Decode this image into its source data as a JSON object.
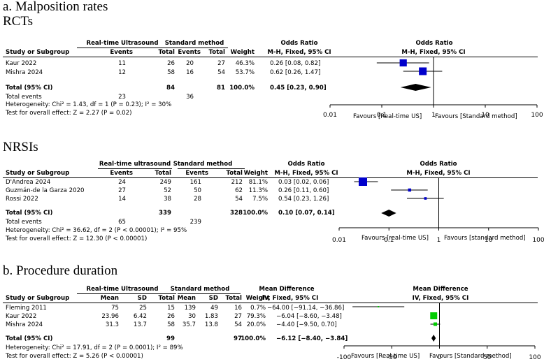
{
  "title_a": "a. Malposition rates",
  "title_b": "b. Procedure duration",
  "rcts": {
    "heading": "RCTs",
    "col_left_group": "Real-time Ultrasound",
    "col_right_group": "Standard method",
    "col_or": "Odds Ratio",
    "col_or_sub": "M-H, Fixed, 95% CI",
    "col_plot_title": "Odds Ratio",
    "col_plot_sub": "M-H, Fixed, 95% CI",
    "col_study": "Study or Subgroup",
    "col_events": "Events",
    "col_total": "Total",
    "col_weight": "Weight",
    "rows": [
      {
        "study": "Kaur 2022",
        "e1": "11",
        "t1": "26",
        "e2": "20",
        "t2": "27",
        "w": "46.3%",
        "ci": "0.26 [0.08, 0.82]"
      },
      {
        "study": "Mishra 2024",
        "e1": "12",
        "t1": "58",
        "e2": "16",
        "t2": "54",
        "w": "53.7%",
        "ci": "0.62 [0.26, 1.47]"
      }
    ],
    "total_label": "Total (95% CI)",
    "total_t1": "84",
    "total_t2": "81",
    "total_w": "100.0%",
    "total_ci": "0.45 [0.23, 0.90]",
    "events_label": "Total events",
    "events_e1": "23",
    "events_e2": "36",
    "het": "Heterogeneity: Chi² = 1.43, df = 1 (P = 0.23); I² = 30%",
    "overall": "Test for overall effect: Z = 2.27 (P = 0.02)",
    "fav_left": "Favours [Real-time US]",
    "fav_right": "Favours [Standard method]"
  },
  "nrsis": {
    "heading": "NRSIs",
    "col_left_group": "Real-time ultrasound",
    "col_right_group": "Standard method",
    "col_or": "Odds Ratio",
    "col_or_sub": "M-H, Fixed, 95% CI",
    "col_plot_title": "Odds Ratio",
    "col_plot_sub": "M-H, Fixed, 95% CI",
    "col_study": "Study or Subgroup",
    "col_events": "Events",
    "col_total": "Total",
    "col_weight": "Weight",
    "rows": [
      {
        "study": "D'Andrea 2024",
        "e1": "24",
        "t1": "249",
        "e2": "161",
        "t2": "212",
        "w": "81.1%",
        "ci": "0.03 [0.02, 0.06]"
      },
      {
        "study": "Guzmán-de la Garza 2020",
        "e1": "27",
        "t1": "52",
        "e2": "50",
        "t2": "62",
        "w": "11.3%",
        "ci": "0.26 [0.11, 0.60]"
      },
      {
        "study": "Rossi 2022",
        "e1": "14",
        "t1": "38",
        "e2": "28",
        "t2": "54",
        "w": "7.5%",
        "ci": "0.54 [0.23, 1.26]"
      }
    ],
    "total_label": "Total (95% CI)",
    "total_t1": "339",
    "total_t2": "328",
    "total_w": "100.0%",
    "total_ci": "0.10 [0.07, 0.14]",
    "events_label": "Total events",
    "events_e1": "65",
    "events_e2": "239",
    "het": "Heterogeneity: Chi² = 36.62, df = 2 (P < 0.00001); I² = 95%",
    "overall": "Test for overall effect: Z = 12.30 (P < 0.00001)",
    "fav_left": "Favours [real-time US]",
    "fav_right": "Favours [standard method]"
  },
  "duration": {
    "col_left_group": "Real-time Ultrasound",
    "col_right_group": "Standard method",
    "col_md": "Mean Difference",
    "col_md_sub": "IV, Fixed, 95% CI",
    "col_plot_title": "Mean Difference",
    "col_plot_sub": "IV, Fixed, 95% CI",
    "col_study": "Study or Subgroup",
    "col_mean": "Mean",
    "col_sd": "SD",
    "col_total": "Total",
    "col_weight": "Weight",
    "rows": [
      {
        "study": "Fleming 2011",
        "m1": "75",
        "s1": "25",
        "t1": "15",
        "m2": "139",
        "s2": "49",
        "t2": "16",
        "w": "0.7%",
        "ci": "−64.00 [−91.14, −36.86]"
      },
      {
        "study": "Kaur 2022",
        "m1": "23.96",
        "s1": "6.42",
        "t1": "26",
        "m2": "30",
        "s2": "1.83",
        "t2": "27",
        "w": "79.3%",
        "ci": "−6.04 [−8.60, −3.48]"
      },
      {
        "study": "Mishra 2024",
        "m1": "31.3",
        "s1": "13.7",
        "t1": "58",
        "m2": "35.7",
        "s2": "13.8",
        "t2": "54",
        "w": "20.0%",
        "ci": "−4.40 [−9.50, 0.70]"
      }
    ],
    "total_label": "Total (95% CI)",
    "total_t1": "99",
    "total_t2": "97",
    "total_w": "100.0%",
    "total_ci": "−6.12 [−8.40, −3.84]",
    "het": "Heterogeneity: Chi² = 17.91, df = 2 (P = 0.0001); I² = 89%",
    "overall": "Test for overall effect: Z = 5.26 (P < 0.00001)",
    "fav_left": "Favours [Real-time US]",
    "fav_right": "Favours [Standard method]"
  },
  "chart_data": [
    {
      "type": "forest",
      "title": "RCTs",
      "scale": "log",
      "xlim": [
        0.01,
        100
      ],
      "null_value": 1,
      "ticks": [
        "0.01",
        "0.1",
        "1",
        "10",
        "100"
      ],
      "tick_values": [
        0.01,
        0.1,
        1,
        10,
        100
      ],
      "color": "#0000cc",
      "studies": [
        {
          "name": "Kaur 2022",
          "est": 0.26,
          "lo": 0.08,
          "hi": 0.82,
          "weight": 46.3
        },
        {
          "name": "Mishra 2024",
          "est": 0.62,
          "lo": 0.26,
          "hi": 1.47,
          "weight": 53.7
        }
      ],
      "pooled": {
        "est": 0.45,
        "lo": 0.23,
        "hi": 0.9
      }
    },
    {
      "type": "forest",
      "title": "NRSIs",
      "scale": "log",
      "xlim": [
        0.01,
        100
      ],
      "null_value": 1,
      "ticks": [
        "0.01",
        "0.1",
        "1",
        "10",
        "100"
      ],
      "tick_values": [
        0.01,
        0.1,
        1,
        10,
        100
      ],
      "color": "#0000cc",
      "studies": [
        {
          "name": "D'Andrea 2024",
          "est": 0.03,
          "lo": 0.02,
          "hi": 0.06,
          "weight": 81.1
        },
        {
          "name": "Guzmán-de la Garza 2020",
          "est": 0.26,
          "lo": 0.11,
          "hi": 0.6,
          "weight": 11.3
        },
        {
          "name": "Rossi 2022",
          "est": 0.54,
          "lo": 0.23,
          "hi": 1.26,
          "weight": 7.5
        }
      ],
      "pooled": {
        "est": 0.1,
        "lo": 0.07,
        "hi": 0.14
      }
    },
    {
      "type": "forest",
      "title": "Procedure duration",
      "scale": "linear",
      "xlim": [
        -100,
        100
      ],
      "null_value": 0,
      "ticks": [
        "-100",
        "-50",
        "0",
        "50",
        "100"
      ],
      "tick_values": [
        -100,
        -50,
        0,
        50,
        100
      ],
      "color": "#00cc00",
      "studies": [
        {
          "name": "Fleming 2011",
          "est": -64.0,
          "lo": -91.14,
          "hi": -36.86,
          "weight": 0.7
        },
        {
          "name": "Kaur 2022",
          "est": -6.04,
          "lo": -8.6,
          "hi": -3.48,
          "weight": 79.3
        },
        {
          "name": "Mishra 2024",
          "est": -4.4,
          "lo": -9.5,
          "hi": 0.7,
          "weight": 20.0
        }
      ],
      "pooled": {
        "est": -6.12,
        "lo": -8.4,
        "hi": -3.84
      }
    }
  ]
}
